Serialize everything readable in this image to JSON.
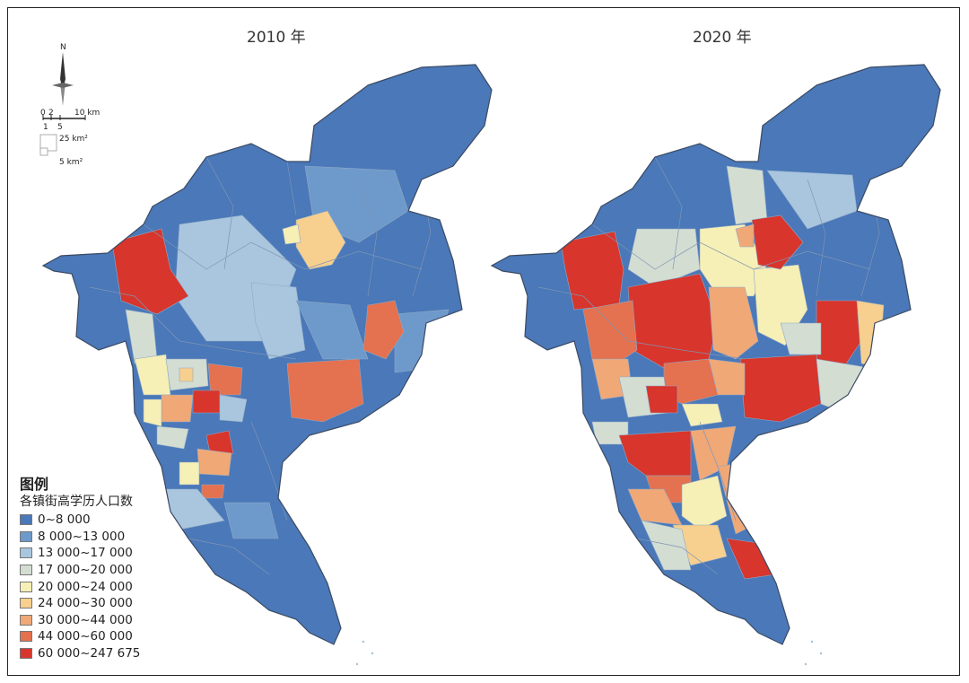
{
  "maps": [
    {
      "title": "2010 年"
    },
    {
      "title": "2020 年"
    }
  ],
  "compass": {
    "north": "N",
    "scale_ticks": [
      "0",
      "2",
      "10 km"
    ],
    "scale_ticks_lower": [
      "1",
      "5"
    ],
    "area_large": "25 km²",
    "area_small": "5 km²"
  },
  "legend": {
    "title": "图例",
    "subtitle": "各镇街高学历人口数",
    "classes": [
      {
        "label": "0~8 000",
        "color": "#4a78b8"
      },
      {
        "label": "8 000~13 000",
        "color": "#6e9acb"
      },
      {
        "label": "13 000~17 000",
        "color": "#a9c6de"
      },
      {
        "label": "17 000~20 000",
        "color": "#d3ddd2"
      },
      {
        "label": "20 000~24 000",
        "color": "#f6efb6"
      },
      {
        "label": "24 000~30 000",
        "color": "#f7cf8e"
      },
      {
        "label": "30 000~44 000",
        "color": "#f0a877"
      },
      {
        "label": "44 000~60 000",
        "color": "#e4714f"
      },
      {
        "label": "60 000~247 675",
        "color": "#d8352c"
      }
    ]
  }
}
